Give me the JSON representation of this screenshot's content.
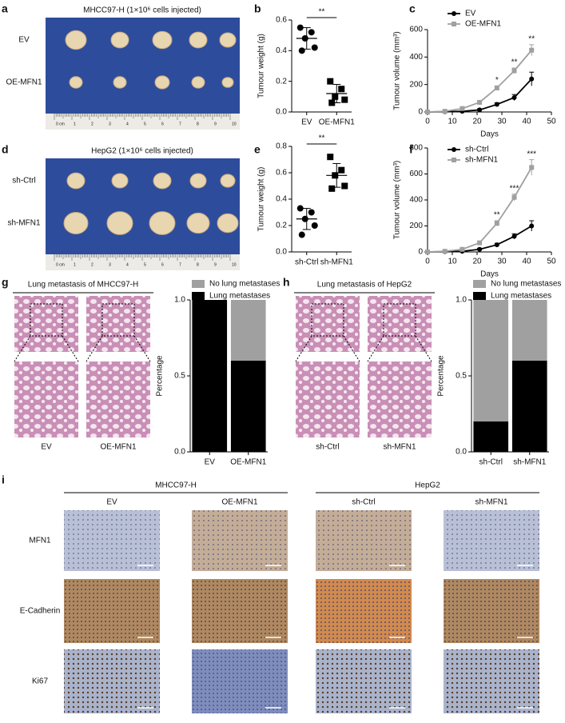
{
  "figures": {
    "a": {
      "panel": "a",
      "title": "MHCC97-H (1×10⁶ cells injected)",
      "rows": [
        "EV",
        "OE-MFN1"
      ],
      "ruler": [
        "0 cm",
        "1",
        "2",
        "3",
        "4",
        "5",
        "6",
        "7",
        "8",
        "9",
        "10"
      ]
    },
    "d": {
      "panel": "d",
      "title": "HepG2 (1×10⁶ cells injected)",
      "rows": [
        "sh-Ctrl",
        "sh-MFN1"
      ],
      "ruler": [
        "0 cm",
        "1",
        "2",
        "3",
        "4",
        "5",
        "6",
        "7",
        "8",
        "9",
        "10"
      ]
    },
    "g": {
      "panel": "g",
      "title": "Lung metastasis of MHCC97-H",
      "columns": [
        "EV",
        "OE-MFN1"
      ]
    },
    "h": {
      "panel": "h",
      "title": "Lung metastasis of HepG2",
      "columns": [
        "sh-Ctrl",
        "sh-MFN1"
      ]
    },
    "i": {
      "panel": "i",
      "groups": [
        {
          "name": "MHCC97-H",
          "columns": [
            "EV",
            "OE-MFN1"
          ]
        },
        {
          "name": "HepG2",
          "columns": [
            "sh-Ctrl",
            "sh-MFN1"
          ]
        }
      ],
      "rows": [
        "MFN1",
        "E-Cadherin",
        "Ki67"
      ]
    }
  },
  "chart_data": [
    {
      "type": "strip",
      "panel": "b",
      "ylabel": "Tumour weight (g)",
      "categories": [
        "EV",
        "OE-MFN1"
      ],
      "values": [
        [
          0.55,
          0.52,
          0.48,
          0.42,
          0.4
        ],
        [
          0.2,
          0.15,
          0.1,
          0.08,
          0.06
        ]
      ],
      "means": [
        0.48,
        0.12
      ],
      "sds": [
        0.07,
        0.06
      ],
      "significance": "**",
      "color": "#000000",
      "ylim": [
        0,
        0.6
      ],
      "yticks": [
        {
          "value": 0,
          "label": "0.0"
        },
        0.2,
        0.4,
        0.6
      ]
    },
    {
      "type": "line",
      "panel": "c",
      "ylabel": "Tumour volume (mm³)",
      "xlabel": "Days",
      "x": [
        0,
        7,
        14,
        21,
        28,
        35,
        42
      ],
      "series": [
        {
          "name": "EV",
          "color": "#000000",
          "values": [
            0,
            2,
            5,
            15,
            55,
            105,
            240
          ],
          "errors": [
            0,
            2,
            4,
            8,
            12,
            22,
            50
          ]
        },
        {
          "name": "OE-MFN1",
          "color": "#a0a0a0",
          "values": [
            0,
            5,
            25,
            70,
            175,
            300,
            450
          ],
          "errors": [
            0,
            3,
            6,
            10,
            15,
            20,
            40
          ]
        }
      ],
      "annotations": [
        {
          "x": 28,
          "text": "*"
        },
        {
          "x": 35,
          "text": "**"
        },
        {
          "x": 42,
          "text": "**"
        }
      ],
      "xlim": [
        0,
        50
      ],
      "xticks": [
        0,
        10,
        20,
        30,
        40,
        50
      ],
      "ylim": [
        0,
        600
      ],
      "yticks": [
        0,
        200,
        400,
        600
      ]
    },
    {
      "type": "strip",
      "panel": "e",
      "ylabel": "Tumour weight (g)",
      "categories": [
        "sh-Ctrl",
        "sh-MFN1"
      ],
      "values": [
        [
          0.33,
          0.3,
          0.25,
          0.2,
          0.13
        ],
        [
          0.72,
          0.62,
          0.58,
          0.5,
          0.48
        ]
      ],
      "means": [
        0.25,
        0.58
      ],
      "sds": [
        0.08,
        0.09
      ],
      "significance": "**",
      "color": "#000000",
      "ylim": [
        0,
        0.8
      ],
      "yticks": [
        {
          "value": 0,
          "label": "0.0"
        },
        0.2,
        0.4,
        0.6,
        0.8
      ]
    },
    {
      "type": "line",
      "panel": "f",
      "ylabel": "Tumour volume (mm³)",
      "xlabel": "Days",
      "x": [
        0,
        7,
        14,
        21,
        28,
        35,
        42
      ],
      "series": [
        {
          "name": "sh-Ctrl",
          "color": "#000000",
          "values": [
            0,
            2,
            5,
            20,
            55,
            120,
            200
          ],
          "errors": [
            0,
            2,
            4,
            8,
            12,
            20,
            40
          ]
        },
        {
          "name": "sh-MFN1",
          "color": "#a0a0a0",
          "values": [
            0,
            5,
            20,
            70,
            220,
            420,
            650
          ],
          "errors": [
            0,
            3,
            6,
            12,
            20,
            25,
            60
          ]
        }
      ],
      "annotations": [
        {
          "x": 28,
          "text": "**"
        },
        {
          "x": 35,
          "text": "***"
        },
        {
          "x": 42,
          "text": "***"
        }
      ],
      "xlim": [
        0,
        50
      ],
      "xticks": [
        0,
        10,
        20,
        30,
        40,
        50
      ],
      "ylim": [
        0,
        800
      ],
      "yticks": [
        0,
        200,
        400,
        600,
        800
      ]
    },
    {
      "type": "stacked_bar",
      "ylabel": "Percentage",
      "categories": [
        "EV",
        "OE-MFN1"
      ],
      "series": [
        {
          "name": "Lung metastases",
          "color": "#000000",
          "values": [
            1,
            0.6
          ]
        },
        {
          "name": "No lung metastases",
          "color": "#a0a0a0",
          "values": [
            0,
            0.4
          ]
        }
      ],
      "ylim": [
        0,
        1
      ],
      "yticks": [
        {
          "value": 0,
          "label": "0.0"
        },
        0.5,
        {
          "value": 1,
          "label": "1.0"
        }
      ]
    },
    {
      "type": "stacked_bar",
      "ylabel": "Percentage",
      "categories": [
        "sh-Ctrl",
        "sh-MFN1"
      ],
      "series": [
        {
          "name": "Lung metastases",
          "color": "#000000",
          "values": [
            0.2,
            0.6
          ]
        },
        {
          "name": "No lung metastases",
          "color": "#a0a0a0",
          "values": [
            0.8,
            0.4
          ]
        }
      ],
      "ylim": [
        0,
        1
      ],
      "yticks": [
        {
          "value": 0,
          "label": "0.0"
        },
        0.5,
        {
          "value": 1,
          "label": "1.0"
        }
      ]
    }
  ]
}
